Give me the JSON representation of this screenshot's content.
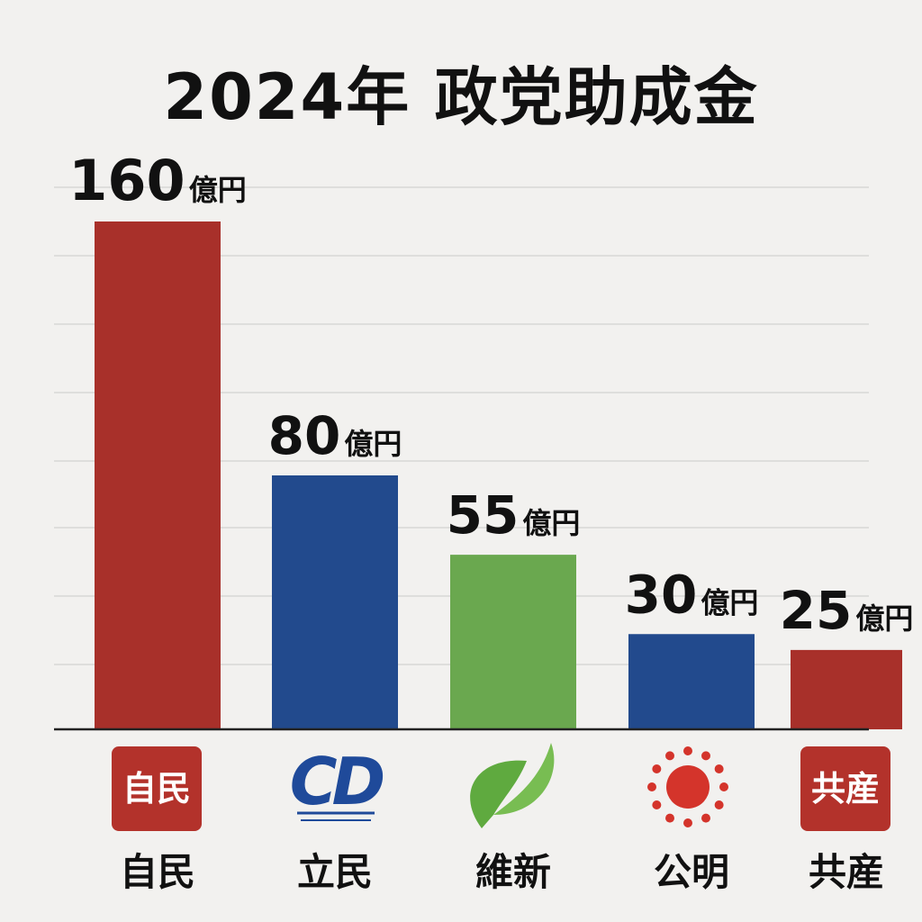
{
  "title": "2024年 政党助成金",
  "chart_data": {
    "type": "bar",
    "title": "2024年 政党助成金",
    "unit": "億円",
    "categories": [
      "自民",
      "立民",
      "維新",
      "公明",
      "共産"
    ],
    "values": [
      160,
      80,
      55,
      30,
      25
    ],
    "colors": [
      "#a8302a",
      "#224a8d",
      "#6aa84f",
      "#224a8d",
      "#a8302a"
    ],
    "ylim": [
      0,
      160
    ],
    "grid": true
  },
  "logos": [
    {
      "icon": "ldp-logo-icon",
      "text": "自民"
    },
    {
      "icon": "cdp-logo-icon",
      "text": "CD"
    },
    {
      "icon": "ishin-leaf-icon"
    },
    {
      "icon": "komeito-sun-icon"
    },
    {
      "icon": "jcp-logo-icon",
      "text": "共産"
    }
  ]
}
